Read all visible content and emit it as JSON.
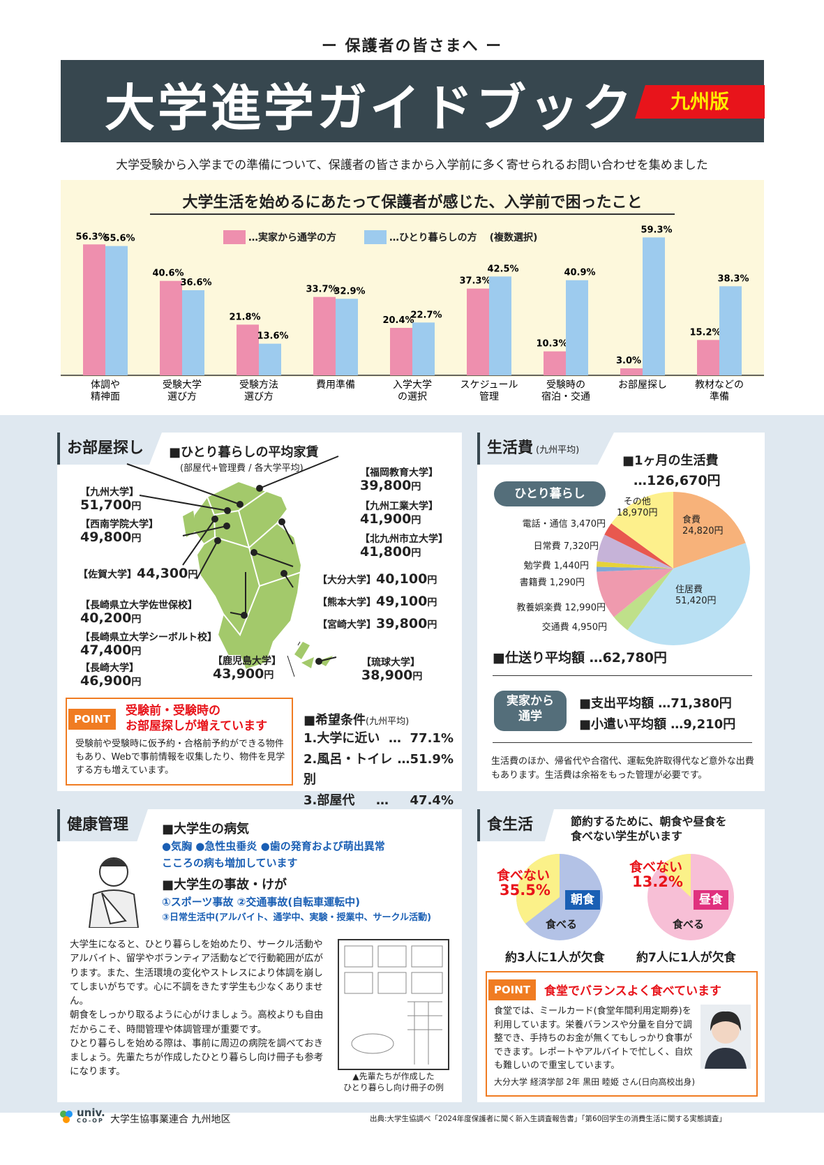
{
  "header": {
    "sub": "ー 保護者の皆さまへ ー",
    "title": "大学進学ガイドブック",
    "edition": "九州版",
    "intro": "大学受験から入学までの準備について、保護者の皆さまから入学前に多く寄せられるお問い合わせを集めました"
  },
  "chart_data": {
    "type": "bar",
    "title": "大学生活を始めるにあたって保護者が感じた、入学前で困ったこと",
    "legend_note": "(複数選択)",
    "categories": [
      "体調や\n精神面",
      "受験大学\n選び方",
      "受験方法\n選び方",
      "費用準備",
      "入学大学\nの選択",
      "スケジュール\n管理",
      "受験時の\n宿泊・交通",
      "お部屋探し",
      "教材などの\n準備"
    ],
    "series": [
      {
        "name": "…実家から通学の方",
        "color": "#ee8fae",
        "values": [
          56.3,
          40.6,
          21.8,
          33.7,
          20.4,
          37.3,
          10.3,
          3.0,
          15.2
        ]
      },
      {
        "name": "…ひとり暮らしの方",
        "color": "#9dcbee",
        "values": [
          55.6,
          36.6,
          13.6,
          32.9,
          22.7,
          42.5,
          40.9,
          59.3,
          38.3
        ]
      }
    ],
    "ylim": [
      0,
      60
    ]
  },
  "heya": {
    "tab": "お部屋探し",
    "title": "■ひとり暮らしの平均家賃",
    "note": "(部屋代+管理費 / 各大学平均)",
    "unis": [
      {
        "name": "【九州大学】",
        "rent": "51,700",
        "unit": "円"
      },
      {
        "name": "【西南学院大学】",
        "rent": "49,800",
        "unit": "円"
      },
      {
        "name": "【佐賀大学】",
        "rent": "44,300",
        "unit": "円"
      },
      {
        "name": "【長崎県立大学佐世保校】",
        "rent": "40,200",
        "unit": "円"
      },
      {
        "name": "【長崎県立大学シーボルト校】",
        "rent": "47,400",
        "unit": "円"
      },
      {
        "name": "【長崎大学】",
        "rent": "46,900",
        "unit": "円"
      },
      {
        "name": "【鹿児島大学】",
        "rent": "43,900",
        "unit": "円"
      },
      {
        "name": "【福岡教育大学】",
        "rent": "39,800",
        "unit": "円"
      },
      {
        "name": "【九州工業大学】",
        "rent": "41,900",
        "unit": "円"
      },
      {
        "name": "【北九州市立大学】",
        "rent": "41,800",
        "unit": "円"
      },
      {
        "name": "【大分大学】",
        "rent": "40,100",
        "unit": "円"
      },
      {
        "name": "【熊本大学】",
        "rent": "49,100",
        "unit": "円"
      },
      {
        "name": "【宮崎大学】",
        "rent": "39,800",
        "unit": "円"
      },
      {
        "name": "【琉球大学】",
        "rent": "38,900",
        "unit": "円"
      }
    ],
    "point_tag": "POINT",
    "point_title": "受験前・受験時の\nお部屋探しが増えています",
    "point_body": "受験前や受験時に仮予約・合格前予約ができる物件もあり、Webで事前情報を収集したり、物件を見学する方も増えています。",
    "kibou_title": "■希望条件",
    "kibou_note": "(九州平均)",
    "kibou": [
      {
        "label": "1.大学に近い",
        "dots": "…",
        "val": "77.1%"
      },
      {
        "label": "2.風呂・トイレ別",
        "dots": "…",
        "val": "51.9%"
      },
      {
        "label": "3.部屋代",
        "dots": "…",
        "val": "47.4%"
      }
    ]
  },
  "seikatsu": {
    "tab": "生活費",
    "tab_note": "(九州平均)",
    "month_title": "■1ヶ月の生活費",
    "month_total": "…126,670円",
    "pill": "ひとり暮らし",
    "pie": [
      {
        "label": "食費",
        "value": "24,820円",
        "amount": 24820,
        "color": "#f7b27a"
      },
      {
        "label": "住居費",
        "value": "51,420円",
        "amount": 51420,
        "color": "#b9e0f3"
      },
      {
        "label": "交通費",
        "value": "4,950円",
        "amount": 4950,
        "color": "#bfe08a"
      },
      {
        "label": "教養娯楽費",
        "value": "12,990円",
        "amount": 12990,
        "color": "#ef9aae"
      },
      {
        "label": "書籍費",
        "value": "1,290円",
        "amount": 1290,
        "color": "#7fa7d8"
      },
      {
        "label": "勉学費",
        "value": "1,440円",
        "amount": 1440,
        "color": "#e6d23a"
      },
      {
        "label": "日常費",
        "value": "7,320円",
        "amount": 7320,
        "color": "#c6b3d8"
      },
      {
        "label": "電話・通信",
        "value": "3,470円",
        "amount": 3470,
        "color": "#e8584f"
      },
      {
        "label": "その他",
        "value": "18,970円",
        "amount": 18970,
        "color": "#fdf08c"
      }
    ],
    "shiokuri": "■仕送り平均額 …62,780円",
    "jikka_pill": "実家から\n通学",
    "shishutsu": "■支出平均額 …71,380円",
    "kozukai": "■小遣い平均額 …9,210円",
    "note": "生活費のほか、帰省代や合宿代、運転免許取得代など意外な出費もあります。生活費は余裕をもった管理が必要です。"
  },
  "kenko": {
    "tab": "健康管理",
    "byoki_title": "■大学生の病気",
    "byoki_list": "●気胸 ●急性虫垂炎 ●歯の発育および萌出異常",
    "kokoro": "こころの病も増加しています",
    "jiko_title": "■大学生の事故・けが",
    "jiko1": "①スポーツ事故 ②交通事故(自転車運転中)",
    "jiko2": "③日常生活中(アルバイト、通学中、実験・授業中、サークル活動)",
    "body": "大学生になると、ひとり暮らしを始めたり、サークル活動やアルバイト、留学やボランティア活動などで行動範囲が広がります。また、生活環境の変化やストレスにより体調を崩してしまいがちです。心に不調をきたす学生も少なくありません。\n朝食をしっかり取るように心がけましょう。高校よりも自由だからこそ、時間管理や体調管理が重要です。\nひとり暮らしを始める際は、事前に周辺の病院を調べておきましょう。先輩たちが作成したひとり暮らし向け冊子も参考になります。",
    "caption": "▲先輩たちが作成した\nひとり暮らし向け冊子の例"
  },
  "shoku": {
    "tab": "食生活",
    "lead": "節約するために、朝食や昼食を\n食べない学生がいます",
    "breakfast": {
      "skip_label": "食べない",
      "skip_val": "35.5%",
      "skip": 35.5,
      "tag": "朝食",
      "eat": "食べる",
      "summary": "約3人に1人が欠食"
    },
    "lunch": {
      "skip_label": "食べない",
      "skip_val": "13.2%",
      "skip": 13.2,
      "tag": "昼食",
      "eat": "食べる",
      "summary": "約7人に1人が欠食"
    },
    "point_tag": "POINT",
    "point_title": "食堂でバランスよく食べています",
    "point_body": "食堂では、ミールカード(食堂年間利用定期券)を利用しています。栄養バランスや分量を自分で調整でき、手持ちのお金が無くてもしっかり食事ができます。レポートやアルバイトで忙しく、自炊も難しいので重宝しています。",
    "person": "大分大学 経済学部 2年 黒田 睦姫 さん(日向高校出身)"
  },
  "footer": {
    "logo": "univ.",
    "logo_sub": "CO-OP",
    "org": "大学生協事業連合 九州地区",
    "source": "出典:大学生協調べ「2024年度保護者に聞く新入生調査報告書」「第60回学生の消費生活に関する実態調査」"
  }
}
